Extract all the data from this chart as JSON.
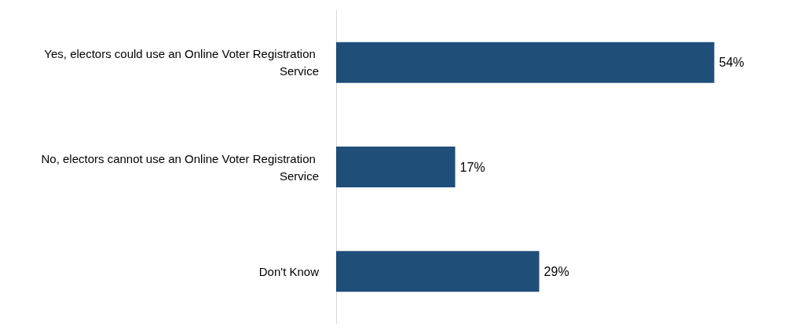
{
  "chart_data": {
    "type": "bar",
    "orientation": "horizontal",
    "categories": [
      "Yes, electors could use an Online Voter Registration Service",
      "No, electors cannot use an Online Voter Registration Service",
      "Don't Know"
    ],
    "values": [
      54,
      17,
      29
    ],
    "value_labels": [
      "54%",
      "17%",
      "29%"
    ],
    "color": "#1f4e79",
    "grid": false,
    "tick_labels": "y"
  }
}
